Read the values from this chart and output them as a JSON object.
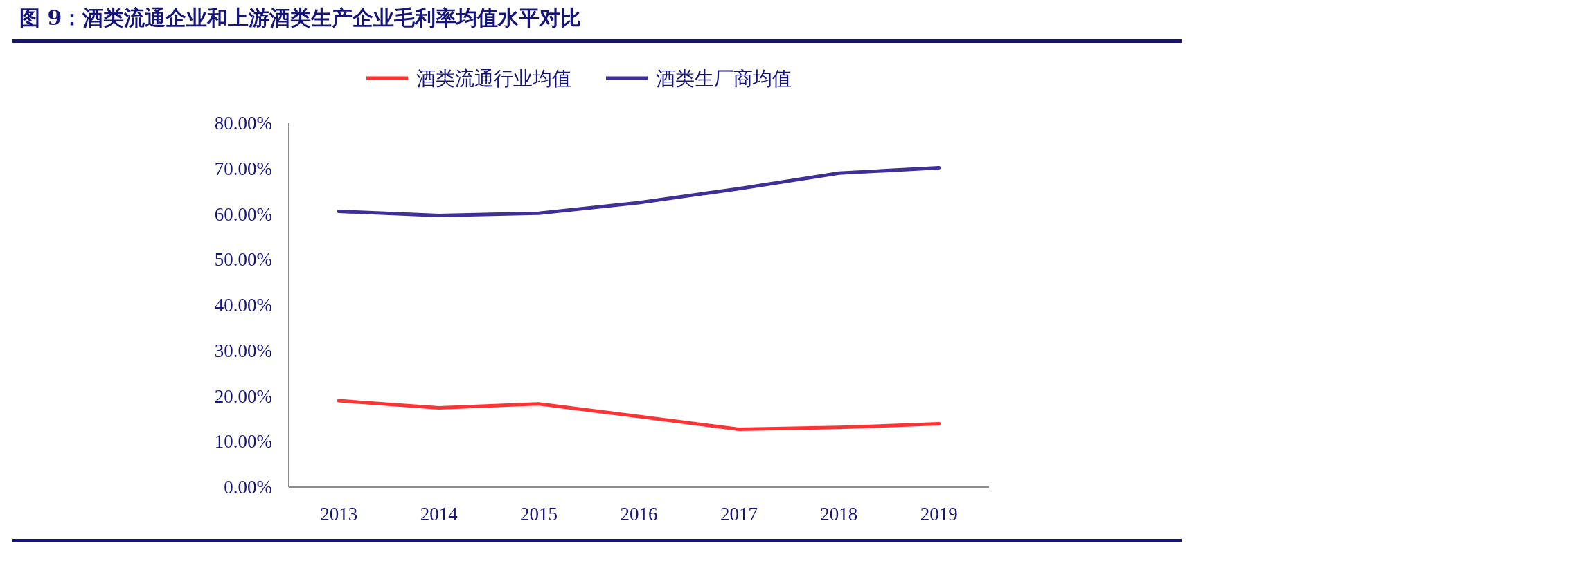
{
  "chart_data": {
    "type": "line",
    "title": "图 9：酒类流通企业和上游酒类生产企业毛利率均值水平对比",
    "categories": [
      "2013",
      "2014",
      "2015",
      "2016",
      "2017",
      "2018",
      "2019"
    ],
    "series": [
      {
        "name": "酒类流通行业均值",
        "color": "#ff3333",
        "values": [
          19.0,
          17.4,
          18.3,
          15.5,
          12.7,
          13.1,
          13.9
        ]
      },
      {
        "name": "酒类生厂商均值",
        "color": "#3f2f96",
        "values": [
          60.6,
          59.7,
          60.2,
          62.5,
          65.6,
          69.0,
          70.2
        ]
      }
    ],
    "ylim": [
      0,
      80
    ],
    "yticks": [
      {
        "value": 0,
        "label": "0.00%"
      },
      {
        "value": 10,
        "label": "10.00%"
      },
      {
        "value": 20,
        "label": "20.00%"
      },
      {
        "value": 30,
        "label": "30.00%"
      },
      {
        "value": 40,
        "label": "40.00%"
      },
      {
        "value": 50,
        "label": "50.00%"
      },
      {
        "value": 60,
        "label": "60.00%"
      },
      {
        "value": 70,
        "label": "70.00%"
      },
      {
        "value": 80,
        "label": "80.00%"
      }
    ],
    "grid": false,
    "legend": "top",
    "marker": "none",
    "line_style": "solid"
  }
}
